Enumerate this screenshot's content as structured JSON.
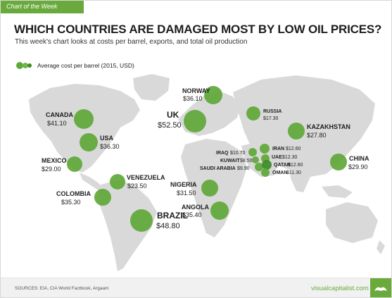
{
  "banner": "Chart of the Week",
  "title": "WHICH COUNTRIES ARE DAMAGED MOST BY LOW OIL PRICES?",
  "subtitle": "This week's chart looks at costs per barrel, exports, and total oil production",
  "legend": "Average cost per barrel (2015, USD)",
  "sources": "SOURCES: EIA, CIA World Factbook, Argaam",
  "brand": "visualcapitalist.com",
  "colors": {
    "bubble": "#5fa83a",
    "bubble_dark": "#3e8a26",
    "land": "#d9d9d9",
    "accent": "#6aaa3c"
  },
  "chart_data": {
    "type": "scatter",
    "title": "WHICH COUNTRIES ARE DAMAGED MOST BY LOW OIL PRICES?",
    "size_measure": "Average cost per barrel (2015, USD)",
    "points": [
      {
        "country": "NORWAY",
        "value": 36.1,
        "label": "$36.10"
      },
      {
        "country": "CANADA",
        "value": 41.1,
        "label": "$41.10"
      },
      {
        "country": "UK",
        "value": 52.5,
        "label": "$52.50"
      },
      {
        "country": "RUSSIA",
        "value": 17.3,
        "label": "$17.30"
      },
      {
        "country": "USA",
        "value": 36.3,
        "label": "$36.30"
      },
      {
        "country": "KAZAKHSTAN",
        "value": 27.8,
        "label": "$27.80"
      },
      {
        "country": "MEXICO",
        "value": 29.0,
        "label": "$29.00"
      },
      {
        "country": "IRAQ",
        "value": 10.7,
        "label": "$10.70"
      },
      {
        "country": "IRAN",
        "value": 12.6,
        "label": "$12.60"
      },
      {
        "country": "KUWAIT",
        "value": 8.5,
        "label": "$8.50"
      },
      {
        "country": "UAE",
        "value": 12.3,
        "label": "$12.30"
      },
      {
        "country": "SAUDI ARABIA",
        "value": 9.9,
        "label": "$9.90"
      },
      {
        "country": "QATAR",
        "value": 12.6,
        "label": "$12.60"
      },
      {
        "country": "OMAN",
        "value": 11.3,
        "label": "$11.30"
      },
      {
        "country": "CHINA",
        "value": 29.9,
        "label": "$29.90"
      },
      {
        "country": "VENEZUELA",
        "value": 23.5,
        "label": "$23.50"
      },
      {
        "country": "NIGERIA",
        "value": 31.5,
        "label": "$31.50"
      },
      {
        "country": "COLOMBIA",
        "value": 35.3,
        "label": "$35.30"
      },
      {
        "country": "ANGOLA",
        "value": 35.4,
        "label": "$35.40"
      },
      {
        "country": "BRAZIL",
        "value": 48.8,
        "label": "$48.80"
      }
    ]
  }
}
